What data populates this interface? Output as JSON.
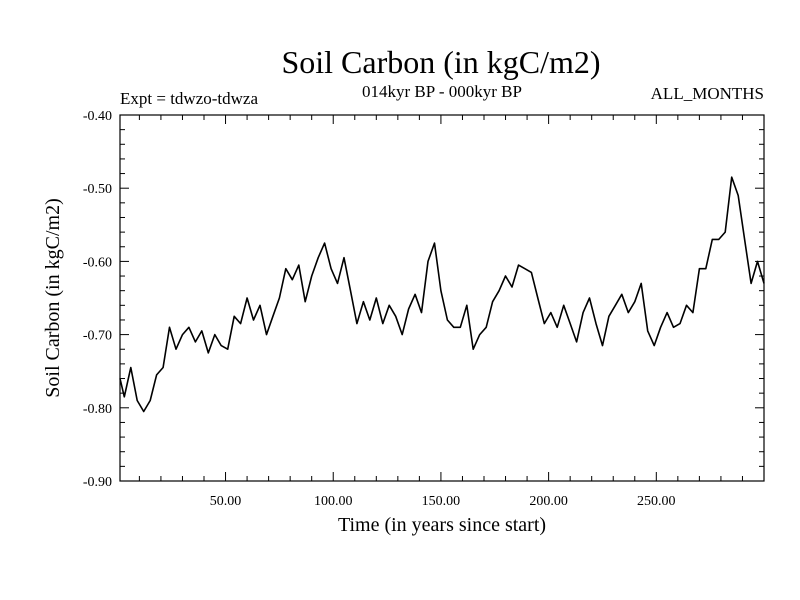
{
  "chart_data": {
    "type": "line",
    "title": "Soil Carbon (in kgC/m2)",
    "subtitle_left": "Expt = tdwzo-tdwza",
    "subtitle_center": "014kyr BP - 000kyr BP",
    "subtitle_right": "ALL_MONTHS",
    "xlabel": "Time (in years since start)",
    "ylabel": "Soil Carbon (in kgC/m2)",
    "xlim": [
      1,
      300
    ],
    "ylim": [
      -0.9,
      -0.4
    ],
    "x_ticks": [
      50,
      100,
      150,
      200,
      250
    ],
    "x_tick_labels": [
      "50.00",
      "100.00",
      "150.00",
      "200.00",
      "250.00"
    ],
    "y_ticks": [
      -0.4,
      -0.5,
      -0.6,
      -0.7,
      -0.8,
      -0.9
    ],
    "y_tick_labels": [
      "-0.40",
      "-0.50",
      "-0.60",
      "-0.70",
      "-0.80",
      "-0.90"
    ],
    "grid": false,
    "line_color": "#000000",
    "series": [
      {
        "x": [
          1,
          3,
          6,
          9,
          12,
          15,
          18,
          21,
          24,
          27,
          30,
          33,
          36,
          39,
          42,
          45,
          48,
          51,
          54,
          57,
          60,
          63,
          66,
          69,
          72,
          75,
          78,
          81,
          84,
          87,
          90,
          93,
          96,
          99,
          102,
          105,
          108,
          111,
          114,
          117,
          120,
          123,
          126,
          129,
          132,
          135,
          138,
          141,
          144,
          147,
          150,
          153,
          156,
          159,
          162,
          165,
          168,
          171,
          174,
          177,
          180,
          183,
          186,
          189,
          192,
          195,
          198,
          201,
          204,
          207,
          210,
          213,
          216,
          219,
          222,
          225,
          228,
          231,
          234,
          237,
          240,
          243,
          246,
          249,
          252,
          255,
          258,
          261,
          264,
          267,
          270,
          273,
          276,
          279,
          282,
          285,
          288,
          291,
          294,
          297,
          300
        ],
        "y": [
          -0.76,
          -0.785,
          -0.745,
          -0.79,
          -0.805,
          -0.79,
          -0.755,
          -0.745,
          -0.69,
          -0.72,
          -0.7,
          -0.69,
          -0.71,
          -0.695,
          -0.725,
          -0.7,
          -0.715,
          -0.72,
          -0.675,
          -0.685,
          -0.65,
          -0.68,
          -0.66,
          -0.7,
          -0.675,
          -0.65,
          -0.61,
          -0.625,
          -0.605,
          -0.655,
          -0.62,
          -0.595,
          -0.575,
          -0.61,
          -0.63,
          -0.595,
          -0.64,
          -0.685,
          -0.655,
          -0.68,
          -0.65,
          -0.685,
          -0.66,
          -0.675,
          -0.7,
          -0.665,
          -0.645,
          -0.67,
          -0.6,
          -0.575,
          -0.64,
          -0.68,
          -0.69,
          -0.69,
          -0.66,
          -0.72,
          -0.7,
          -0.69,
          -0.655,
          -0.64,
          -0.62,
          -0.635,
          -0.605,
          -0.61,
          -0.615,
          -0.65,
          -0.685,
          -0.67,
          -0.69,
          -0.66,
          -0.685,
          -0.71,
          -0.67,
          -0.65,
          -0.685,
          -0.715,
          -0.675,
          -0.66,
          -0.645,
          -0.67,
          -0.655,
          -0.63,
          -0.695,
          -0.715,
          -0.69,
          -0.67,
          -0.69,
          -0.685,
          -0.66,
          -0.67,
          -0.61,
          -0.61,
          -0.57,
          -0.57,
          -0.56,
          -0.485,
          -0.51,
          -0.57,
          -0.63,
          -0.6,
          -0.63
        ]
      }
    ]
  }
}
